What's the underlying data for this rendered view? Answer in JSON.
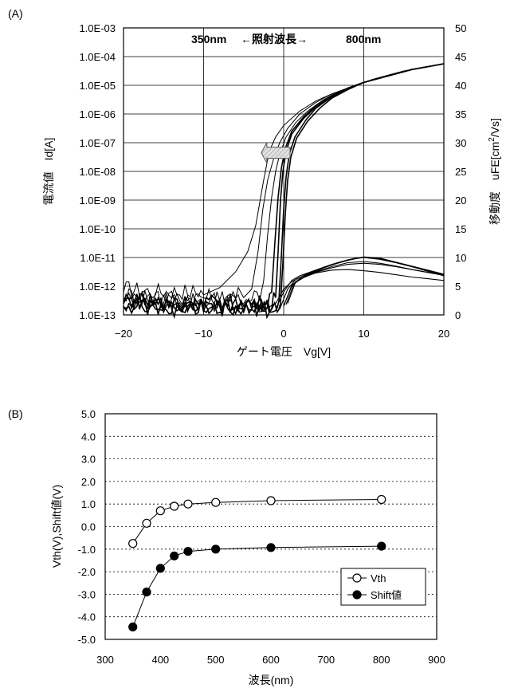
{
  "chart_data": [
    {
      "type": "line",
      "panel_label": "(A)",
      "xlabel": "ゲート電圧　Vg[V]",
      "ylabel": "電流値　Id[A]",
      "y2label": "移動度　uFE[cm²/Vs]",
      "y2label_parts": {
        "main": "移動度　uFE[cm",
        "sup": "2",
        "tail": "/Vs]"
      },
      "annotation": {
        "left": "350nm",
        "middle": "←照射波長→",
        "right": "800nm"
      },
      "xlim": [
        -20,
        20
      ],
      "xticks": [
        "−20",
        "−10",
        "0",
        "10",
        "20"
      ],
      "xtick_values": [
        -20,
        -10,
        0,
        10,
        20
      ],
      "ylog": true,
      "ylim_exp": [
        -13,
        -3
      ],
      "yticks": [
        "1.0E-13",
        "1.0E-12",
        "1.0E-11",
        "1.0E-10",
        "1.0E-09",
        "1.0E-08",
        "1.0E-07",
        "1.0E-06",
        "1.0E-05",
        "1.0E-04",
        "1.0E-03"
      ],
      "y2lim": [
        0,
        50
      ],
      "y2ticks": [
        "0",
        "5",
        "10",
        "15",
        "20",
        "25",
        "30",
        "35",
        "40",
        "45",
        "50"
      ],
      "grid": true,
      "arrow_direction": "left",
      "id_curves": [
        {
          "vth_shift": -8.2,
          "x": [
            -20,
            -16,
            -12,
            -10,
            -8,
            -6,
            -4.5,
            -3.5,
            -2.5,
            -1.8,
            -1,
            0,
            2,
            4,
            6,
            8,
            10,
            12,
            14,
            16,
            18,
            20
          ],
          "log_id": [
            -12.2,
            -12.3,
            -12.3,
            -12.3,
            -12.05,
            -11.5,
            -10.8,
            -9.9,
            -8.3,
            -7.3,
            -6.8,
            -6.4,
            -5.9,
            -5.55,
            -5.3,
            -5.1,
            -4.9,
            -4.75,
            -4.6,
            -4.45,
            -4.35,
            -4.25
          ]
        },
        {
          "vth_shift": -4.0,
          "x": [
            -20,
            -16,
            -12,
            -8,
            -5,
            -4,
            -3.2,
            -2.6,
            -2.0,
            -1.3,
            -0.5,
            0.5,
            2,
            4,
            6,
            8,
            10,
            12,
            14,
            16,
            18,
            20
          ],
          "log_id": [
            -12.4,
            -12.5,
            -12.5,
            -12.5,
            -12.4,
            -12.1,
            -10.8,
            -9.3,
            -8.3,
            -7.6,
            -7.0,
            -6.5,
            -6.0,
            -5.6,
            -5.3,
            -5.1,
            -4.9,
            -4.75,
            -4.6,
            -4.45,
            -4.35,
            -4.25
          ]
        },
        {
          "vth_shift": -2.5,
          "x": [
            -20,
            -15,
            -10,
            -5,
            -3,
            -2.5,
            -2,
            -1.5,
            -1,
            -0.5,
            0.3,
            1.5,
            3,
            5,
            7,
            9,
            11,
            13,
            15,
            17,
            20
          ],
          "log_id": [
            -12.5,
            -12.6,
            -12.6,
            -12.6,
            -12.5,
            -11.8,
            -10.2,
            -8.9,
            -8.0,
            -7.4,
            -6.8,
            -6.3,
            -5.9,
            -5.5,
            -5.2,
            -5.0,
            -4.8,
            -4.65,
            -4.5,
            -4.4,
            -4.25
          ]
        },
        {
          "vth_shift": -1.3,
          "x": [
            -20,
            -15,
            -10,
            -5,
            -2,
            -1.5,
            -1.1,
            -0.7,
            -0.3,
            0.2,
            1,
            2.5,
            4,
            6,
            8,
            10,
            12,
            14,
            16,
            18,
            20
          ],
          "log_id": [
            -12.6,
            -12.7,
            -12.7,
            -12.7,
            -12.7,
            -12.2,
            -10.5,
            -8.9,
            -7.9,
            -7.2,
            -6.6,
            -6.1,
            -5.7,
            -5.35,
            -5.1,
            -4.9,
            -4.75,
            -4.6,
            -4.45,
            -4.35,
            -4.25
          ]
        },
        {
          "vth_shift": -0.7,
          "x": [
            -20,
            -15,
            -10,
            -5,
            -1.5,
            -1.0,
            -0.7,
            -0.4,
            -0.1,
            0.3,
            1,
            2.5,
            4,
            6,
            8,
            10,
            12,
            14,
            16,
            18,
            20
          ],
          "log_id": [
            -12.6,
            -12.8,
            -12.8,
            -12.8,
            -12.8,
            -12.4,
            -10.8,
            -9.0,
            -8.0,
            -7.3,
            -6.7,
            -6.15,
            -5.75,
            -5.4,
            -5.1,
            -4.9,
            -4.75,
            -4.6,
            -4.45,
            -4.35,
            -4.25
          ]
        },
        {
          "vth_shift": -0.3,
          "x": [
            -20,
            -15,
            -10,
            -5,
            -1,
            -0.6,
            -0.3,
            0,
            0.3,
            0.7,
            1.4,
            2.8,
            4,
            6,
            8,
            10,
            12,
            14,
            16,
            18,
            20
          ],
          "log_id": [
            -12.7,
            -12.85,
            -12.85,
            -12.85,
            -12.85,
            -12.5,
            -11.0,
            -9.3,
            -8.2,
            -7.4,
            -6.8,
            -6.2,
            -5.8,
            -5.4,
            -5.1,
            -4.9,
            -4.75,
            -4.6,
            -4.45,
            -4.35,
            -4.25
          ]
        },
        {
          "vth_shift": 0.0,
          "x": [
            -20,
            -15,
            -10,
            -5,
            -0.8,
            -0.4,
            -0.1,
            0.2,
            0.5,
            0.9,
            1.6,
            3,
            4.5,
            6,
            8,
            10,
            12,
            14,
            16,
            18,
            20
          ],
          "log_id": [
            -12.75,
            -12.9,
            -12.9,
            -12.9,
            -12.9,
            -12.6,
            -11.2,
            -9.5,
            -8.3,
            -7.5,
            -6.85,
            -6.25,
            -5.8,
            -5.45,
            -5.15,
            -4.9,
            -4.75,
            -4.6,
            -4.45,
            -4.35,
            -4.25
          ]
        }
      ],
      "mobility_curves": [
        {
          "x": [
            -3,
            -1,
            0,
            1,
            2,
            4,
            6,
            8,
            10,
            12,
            14,
            16,
            18,
            20
          ],
          "y": [
            0.5,
            2,
            4.5,
            5.8,
            6.5,
            7.7,
            8.7,
            9.5,
            10.1,
            9.8,
            9.2,
            8.4,
            7.6,
            6.8
          ]
        },
        {
          "x": [
            -1,
            0,
            1,
            2,
            4,
            6,
            8,
            10,
            12,
            14,
            16,
            18,
            20
          ],
          "y": [
            1,
            4,
            6,
            6.8,
            7.8,
            8.8,
            9.6,
            10.1,
            9.9,
            9.2,
            8.5,
            7.8,
            7.1
          ]
        },
        {
          "x": [
            -0.5,
            0.5,
            1.5,
            3,
            5,
            7,
            9,
            10,
            12,
            14,
            16,
            18,
            20
          ],
          "y": [
            1,
            4.5,
            6.2,
            7.2,
            8.3,
            9.2,
            9.8,
            10.0,
            9.7,
            9.1,
            8.4,
            7.7,
            7.0
          ]
        },
        {
          "x": [
            0,
            1,
            2,
            4,
            6,
            8,
            10,
            12,
            14,
            16,
            18,
            20
          ],
          "y": [
            1.5,
            5,
            6.2,
            7.5,
            8.4,
            9.1,
            9.3,
            9.0,
            8.5,
            7.9,
            7.4,
            6.9
          ]
        },
        {
          "x": [
            0,
            1,
            2,
            4,
            6,
            8,
            10,
            12,
            14,
            16,
            18,
            20
          ],
          "y": [
            1.5,
            5.2,
            6.3,
            7.3,
            7.8,
            7.9,
            7.7,
            7.4,
            7.0,
            6.6,
            6.3,
            6.0
          ]
        },
        {
          "x": [
            0.3,
            1.3,
            2.5,
            4,
            6,
            8,
            10,
            12,
            14,
            16,
            18,
            20
          ],
          "y": [
            1.8,
            5.5,
            6.5,
            7.4,
            8.2,
            8.8,
            9.0,
            8.8,
            8.4,
            7.9,
            7.4,
            6.9
          ]
        },
        {
          "x": [
            0.5,
            1.5,
            3,
            5,
            7,
            9,
            10,
            12,
            14,
            16,
            18,
            20
          ],
          "y": [
            2,
            5.8,
            7.0,
            8.2,
            9.2,
            9.9,
            10.0,
            9.7,
            9.1,
            8.4,
            7.7,
            7.0
          ]
        }
      ]
    },
    {
      "type": "line",
      "panel_label": "(B)",
      "xlabel": "波長(nm)",
      "ylabel": "Vth(V),Shift値(V)",
      "xlim": [
        300,
        900
      ],
      "xticks": [
        "300",
        "400",
        "500",
        "600",
        "700",
        "800",
        "900"
      ],
      "xtick_values": [
        300,
        400,
        500,
        600,
        700,
        800,
        900
      ],
      "ylim": [
        -5,
        5
      ],
      "yticks": [
        "-5.0",
        "-4.0",
        "-3.0",
        "-2.0",
        "-1.0",
        "0.0",
        "1.0",
        "2.0",
        "3.0",
        "4.0",
        "5.0"
      ],
      "ytick_values": [
        -5,
        -4,
        -3,
        -2,
        -1,
        0,
        1,
        2,
        3,
        4,
        5
      ],
      "grid": "horizontal-dotted",
      "legend_position": "lower-right",
      "series": [
        {
          "name": "Vth",
          "marker": "open-circle",
          "x": [
            350,
            375,
            400,
            425,
            450,
            500,
            600,
            800
          ],
          "values": [
            -0.75,
            0.15,
            0.7,
            0.9,
            1.0,
            1.07,
            1.15,
            1.2
          ]
        },
        {
          "name": "Shift値",
          "marker": "filled-circle",
          "x": [
            350,
            375,
            400,
            425,
            450,
            500,
            600,
            800
          ],
          "values": [
            -4.45,
            -2.9,
            -1.85,
            -1.3,
            -1.1,
            -1.0,
            -0.93,
            -0.87
          ]
        }
      ]
    }
  ]
}
